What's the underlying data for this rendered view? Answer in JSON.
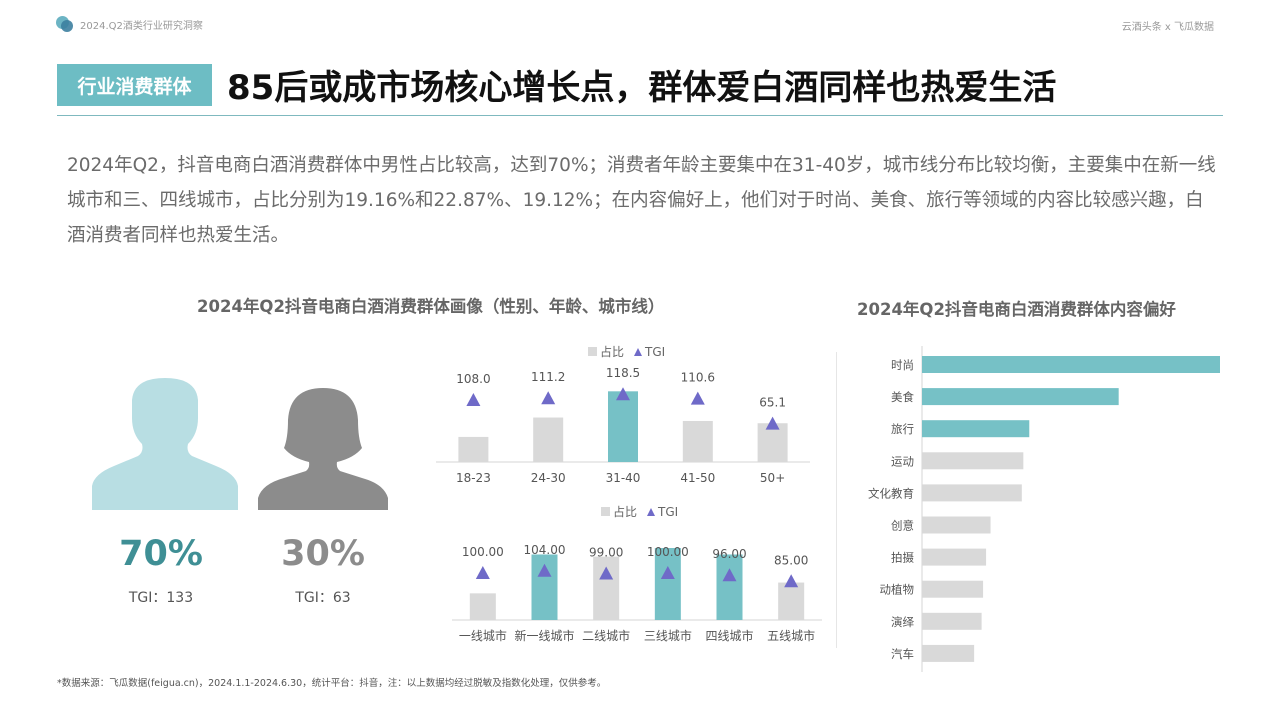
{
  "header": {
    "report_title": "2024.Q2酒类行业研究洞察",
    "brand": "云酒头条 x 飞瓜数据",
    "tag": "行业消费群体",
    "headline": "85后或成市场核心增长点，群体爱白酒同样也热爱生活"
  },
  "summary": "2024年Q2，抖音电商白酒消费群体中男性占比较高，达到70%；消费者年龄主要集中在31-40岁，城市线分布比较均衡，主要集中在新一线城市和三、四线城市，占比分别为19.16%和22.87%、19.12%；在内容偏好上，他们对于时尚、美食、旅行等领域的内容比较感兴趣，白酒消费者同样也热爱生活。",
  "left_section": {
    "title": "2024年Q2抖音电商白酒消费群体画像（性别、年龄、城市线）",
    "male": {
      "icon": "male-silhouette-icon",
      "pct": "70%",
      "tgi": "TGI：133",
      "color": "#b8dee3",
      "pct_color": "#3f8f95"
    },
    "female": {
      "icon": "female-silhouette-icon",
      "pct": "30%",
      "tgi": "TGI：63",
      "color": "#8c8c8c",
      "pct_color": "#8c8c8c"
    }
  },
  "right_section": {
    "title": "2024年Q2抖音电商白酒消费群体内容偏好"
  },
  "legend": {
    "share": "占比",
    "tgi": "TGI"
  },
  "colors": {
    "accent": "#76c1c6",
    "gray": "#d9d9d9",
    "marker": "#6f6ac8"
  },
  "footnote": "*数据来源：飞瓜数据(feigua.cn)，2024.1.1-2024.6.30，统计平台：抖音，注：以上数据均经过脱敏及指数化处理，仅供参考。",
  "chart_data": [
    {
      "type": "bar",
      "categories": [
        "18-23",
        "24-30",
        "31-40",
        "41-50",
        "50+"
      ],
      "series": [
        {
          "name": "占比",
          "values": [
            0.22,
            0.39,
            0.62,
            0.36,
            0.34
          ]
        },
        {
          "name": "TGI",
          "values": [
            108.0,
            111.2,
            118.5,
            110.6,
            65.1
          ]
        }
      ],
      "tgi_labels": [
        "108.0",
        "111.2",
        "118.5",
        "110.6",
        "65.1"
      ],
      "highlight": [
        false,
        false,
        true,
        false,
        false
      ],
      "legend_position": "top-center"
    },
    {
      "type": "bar",
      "categories": [
        "一线城市",
        "新一线城市",
        "二线城市",
        "三线城市",
        "四线城市",
        "五线城市"
      ],
      "series": [
        {
          "name": "占比",
          "values": [
            0.37,
            0.91,
            0.88,
            1.0,
            0.91,
            0.52
          ]
        },
        {
          "name": "TGI",
          "values": [
            100.0,
            104.0,
            99.0,
            100.0,
            96.0,
            85.0
          ]
        }
      ],
      "tgi_labels": [
        "100.00",
        "104.00",
        "99.00",
        "100.00",
        "96.00",
        "85.00"
      ],
      "highlight": [
        false,
        true,
        false,
        true,
        true,
        false
      ],
      "legend_position": "top-center"
    },
    {
      "type": "bar",
      "orientation": "horizontal",
      "categories": [
        "时尚",
        "美食",
        "旅行",
        "运动",
        "文化教育",
        "创意",
        "拍摄",
        "动植物",
        "演绎",
        "汽车"
      ],
      "values": [
        100,
        66,
        36,
        34,
        33.5,
        23,
        21.5,
        20.5,
        20,
        17.5
      ],
      "highlight": [
        true,
        true,
        true,
        false,
        false,
        false,
        false,
        false,
        false,
        false
      ]
    }
  ]
}
